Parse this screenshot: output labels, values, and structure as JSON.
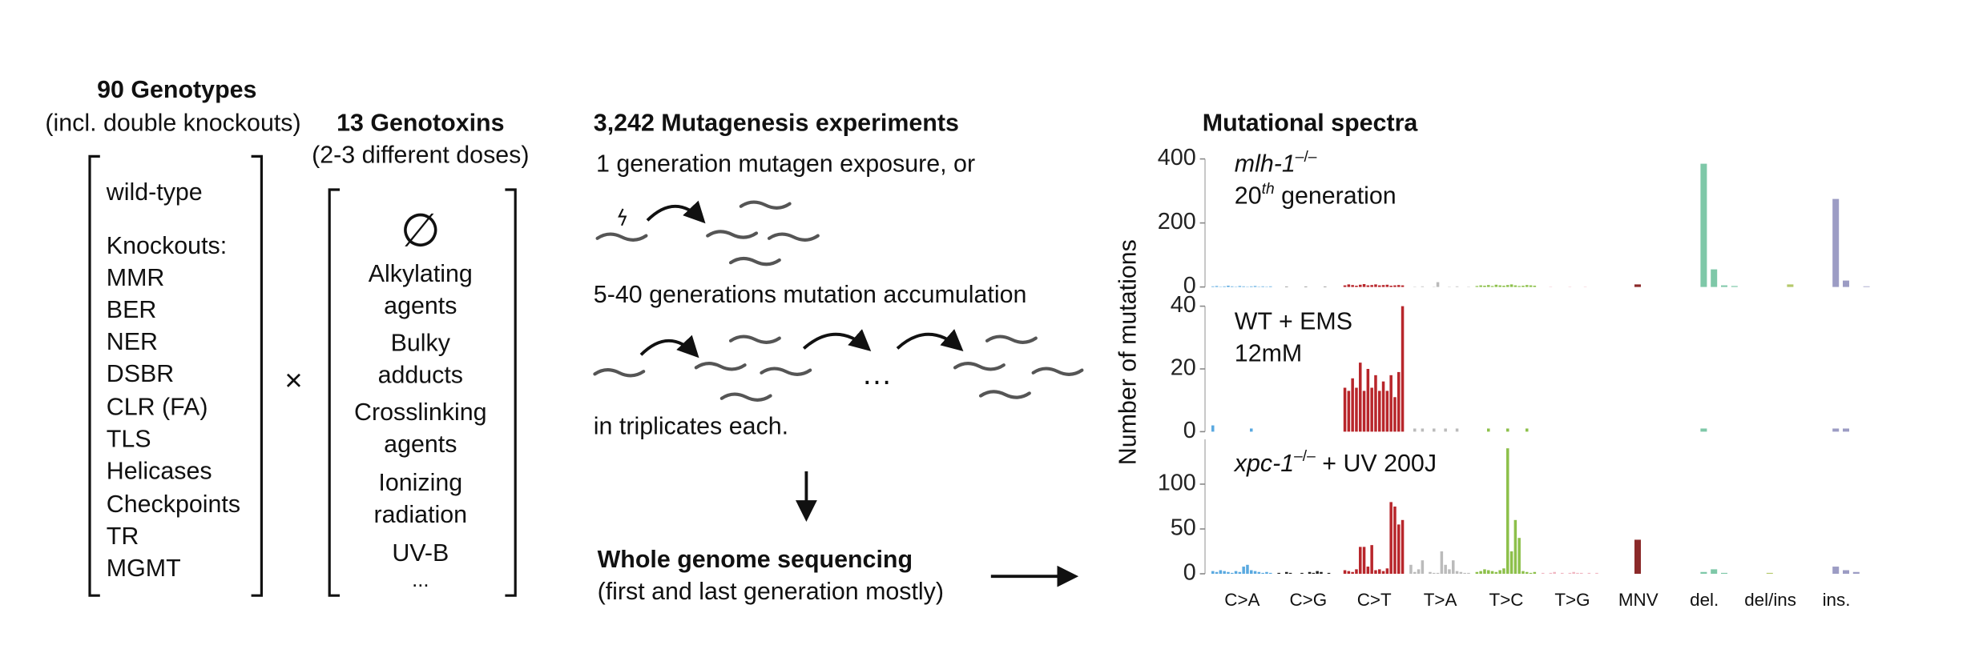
{
  "genotypes": {
    "title": "90 Genotypes",
    "subtitle": "(incl. double knockouts)",
    "items": [
      "wild-type",
      "Knockouts:",
      "MMR",
      "BER",
      "NER",
      "DSBR",
      "CLR (FA)",
      "TLS",
      "Helicases",
      "Checkpoints",
      "TR",
      "MGMT"
    ]
  },
  "times": "×",
  "genotoxins": {
    "title": "13 Genotoxins",
    "subtitle": "(2-3 different doses)",
    "items": [
      "∅",
      "Alkylating",
      "agents",
      "Bulky",
      "adducts",
      "Crosslinking",
      "agents",
      "Ionizing",
      "radiation",
      "UV-B",
      "..."
    ]
  },
  "experiments": {
    "title": "3,242 Mutagenesis experiments",
    "line1": "1 generation mutagen exposure, or",
    "line2": "5-40 generations mutation accumulation",
    "ellipsis": "…",
    "line3": "in triplicates each."
  },
  "sequencing": {
    "title": "Whole genome sequencing",
    "subtitle": "(first and last generation mostly)"
  },
  "chart_data": [
    {
      "type": "bar",
      "title": "Mutational spectra",
      "ylabel": "Number of mutations",
      "annotation": [
        "mlh-1",
        "–/–",
        "20",
        "th",
        " generation"
      ],
      "ylim": [
        0,
        400
      ],
      "yticks": [
        0,
        200,
        400
      ],
      "colors": [
        "#5aa9e0",
        "#222222",
        "#b8262b",
        "#bbbbbb",
        "#8dc04b",
        "#f0b5c0",
        "#8b2a2a",
        "#7ec8a8",
        "#b5c96a",
        "#9c9cc4"
      ],
      "groups": [
        [
          2,
          3,
          1,
          2,
          4,
          2,
          1,
          3,
          2,
          1,
          2,
          3,
          1,
          2,
          1,
          2
        ],
        [
          0,
          0,
          1,
          0,
          0,
          0,
          0,
          1,
          0,
          0,
          0,
          0,
          1,
          0,
          0,
          0
        ],
        [
          5,
          8,
          6,
          4,
          7,
          9,
          5,
          6,
          8,
          5,
          6,
          7,
          4,
          5,
          6,
          5
        ],
        [
          0,
          1,
          0,
          2,
          0,
          0,
          1,
          15,
          0,
          0,
          1,
          0,
          2,
          0,
          0,
          1
        ],
        [
          3,
          5,
          4,
          6,
          3,
          7,
          5,
          4,
          6,
          8,
          5,
          3,
          4,
          6,
          5,
          4
        ],
        [
          0,
          0,
          1,
          0,
          0,
          0,
          0,
          1,
          0,
          0,
          0,
          1,
          0,
          0,
          0,
          0
        ],
        [
          8
        ],
        [
          385,
          55,
          5,
          3
        ],
        [
          0,
          0,
          8,
          0
        ],
        [
          275,
          20,
          0,
          2
        ]
      ]
    },
    {
      "type": "bar",
      "annotation": [
        "WT + EMS",
        "12mM"
      ],
      "ylim": [
        0,
        40
      ],
      "yticks": [
        0,
        20,
        40
      ],
      "colors": [
        "#5aa9e0",
        "#222222",
        "#b8262b",
        "#bbbbbb",
        "#8dc04b",
        "#f0b5c0",
        "#8b2a2a",
        "#7ec8a8",
        "#b5c96a",
        "#9c9cc4"
      ],
      "groups": [
        [
          2,
          0,
          0,
          0,
          0,
          0,
          0,
          0,
          0,
          0,
          1,
          0,
          0,
          0,
          0,
          0
        ],
        [
          0,
          0,
          0,
          0,
          0,
          0,
          0,
          0,
          0,
          0,
          0,
          0,
          0,
          0,
          0,
          0
        ],
        [
          14,
          13,
          17,
          14,
          22,
          13,
          20,
          14,
          18,
          13,
          16,
          13,
          18,
          11,
          19,
          40
        ],
        [
          0,
          1,
          0,
          1,
          0,
          0,
          1,
          0,
          0,
          1,
          0,
          0,
          1,
          0,
          0,
          0
        ],
        [
          0,
          0,
          0,
          1,
          0,
          0,
          0,
          0,
          1,
          0,
          0,
          0,
          0,
          1,
          0,
          0
        ],
        [
          0,
          0,
          0,
          0,
          0,
          0,
          0,
          0,
          0,
          0,
          0,
          0,
          0,
          0,
          0,
          0
        ],
        [
          0
        ],
        [
          1,
          0,
          0,
          0
        ],
        [
          0,
          0,
          0,
          0
        ],
        [
          1,
          1,
          0,
          0
        ]
      ]
    },
    {
      "type": "bar",
      "annotation": [
        "xpc-1",
        "–/–",
        " + UV 200J"
      ],
      "ylim": [
        0,
        150
      ],
      "yticks": [
        0,
        50,
        100
      ],
      "categories": [
        "C>A",
        "C>G",
        "C>T",
        "T>A",
        "T>C",
        "T>G",
        "MNV",
        "del.",
        "del/ins",
        "ins."
      ],
      "colors": [
        "#5aa9e0",
        "#222222",
        "#b8262b",
        "#bbbbbb",
        "#8dc04b",
        "#f0b5c0",
        "#8b2a2a",
        "#7ec8a8",
        "#b5c96a",
        "#9c9cc4"
      ],
      "groups": [
        [
          3,
          2,
          4,
          3,
          2,
          1,
          3,
          2,
          8,
          10,
          4,
          3,
          2,
          1,
          2,
          1
        ],
        [
          1,
          0,
          2,
          1,
          0,
          0,
          1,
          0,
          2,
          1,
          3,
          2,
          0,
          1,
          0,
          0
        ],
        [
          4,
          3,
          2,
          5,
          30,
          30,
          8,
          32,
          4,
          5,
          3,
          6,
          80,
          75,
          55,
          60
        ],
        [
          10,
          2,
          5,
          15,
          0,
          2,
          1,
          1,
          25,
          10,
          5,
          15,
          3,
          2,
          1,
          1
        ],
        [
          2,
          3,
          5,
          4,
          3,
          2,
          4,
          6,
          140,
          25,
          60,
          40,
          3,
          2,
          1,
          2
        ],
        [
          1,
          0,
          1,
          2,
          0,
          1,
          0,
          1,
          2,
          1,
          1,
          0,
          1,
          0,
          1,
          0
        ],
        [
          38
        ],
        [
          2,
          5,
          1,
          0
        ],
        [
          1,
          0,
          0,
          0
        ],
        [
          8,
          4,
          2,
          0
        ]
      ]
    }
  ]
}
